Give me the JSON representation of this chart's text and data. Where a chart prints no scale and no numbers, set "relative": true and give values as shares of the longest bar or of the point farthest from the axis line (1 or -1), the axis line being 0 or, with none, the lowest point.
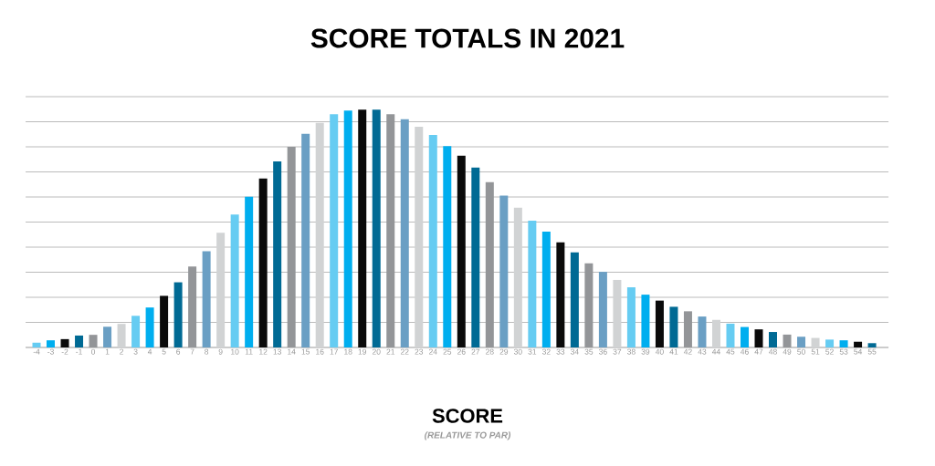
{
  "chart_data": {
    "type": "bar",
    "title": "SCORE TOTALS IN 2021",
    "xlabel": "SCORE",
    "annotations": [
      "(RELATIVE TO PAR)"
    ],
    "relative": true,
    "grid": "y",
    "categories": [
      "-4",
      "-3",
      "-2",
      "-1",
      "0",
      "1",
      "2",
      "3",
      "4",
      "5",
      "6",
      "7",
      "8",
      "9",
      "10",
      "11",
      "12",
      "13",
      "14",
      "15",
      "16",
      "17",
      "18",
      "19",
      "20",
      "21",
      "22",
      "23",
      "24",
      "25",
      "26",
      "27",
      "28",
      "29",
      "30",
      "31",
      "32",
      "33",
      "34",
      "35",
      "36",
      "37",
      "38",
      "39",
      "40",
      "41",
      "42",
      "43",
      "44",
      "45",
      "46",
      "47",
      "48",
      "49",
      "50",
      "51",
      "52",
      "53",
      "54",
      "55"
    ],
    "values": [
      0.02,
      0.03,
      0.035,
      0.05,
      0.053,
      0.087,
      0.099,
      0.133,
      0.168,
      0.217,
      0.274,
      0.34,
      0.405,
      0.482,
      0.559,
      0.634,
      0.711,
      0.783,
      0.844,
      0.899,
      0.945,
      0.981,
      0.996,
      1,
      1,
      0.981,
      0.96,
      0.928,
      0.894,
      0.847,
      0.807,
      0.757,
      0.695,
      0.639,
      0.588,
      0.533,
      0.487,
      0.442,
      0.4,
      0.354,
      0.318,
      0.284,
      0.253,
      0.222,
      0.197,
      0.171,
      0.152,
      0.13,
      0.116,
      0.1,
      0.086,
      0.076,
      0.065,
      0.054,
      0.045,
      0.04,
      0.033,
      0.03,
      0.024,
      0.018
    ],
    "colors": [
      "#66ccf2",
      "#00aeef",
      "#0a0a0a",
      "#006a94",
      "#939598",
      "#6a9fc4",
      "#d1d3d4",
      "#66ccf2",
      "#00aeef",
      "#0a0a0a",
      "#006a94",
      "#939598",
      "#6a9fc4",
      "#d1d3d4",
      "#66ccf2",
      "#00aeef",
      "#0a0a0a",
      "#006a94",
      "#939598",
      "#6a9fc4",
      "#d1d3d4",
      "#66ccf2",
      "#00aeef",
      "#0a0a0a",
      "#006a94",
      "#939598",
      "#6a9fc4",
      "#d1d3d4",
      "#66ccf2",
      "#00aeef",
      "#0a0a0a",
      "#006a94",
      "#939598",
      "#6a9fc4",
      "#d1d3d4",
      "#66ccf2",
      "#00aeef",
      "#0a0a0a",
      "#006a94",
      "#939598",
      "#6a9fc4",
      "#d1d3d4",
      "#66ccf2",
      "#00aeef",
      "#0a0a0a",
      "#006a94",
      "#939598",
      "#6a9fc4",
      "#d1d3d4",
      "#66ccf2",
      "#00aeef",
      "#0a0a0a",
      "#006a94",
      "#939598",
      "#6a9fc4",
      "#d1d3d4",
      "#66ccf2",
      "#00aeef",
      "#0a0a0a",
      "#006a94"
    ]
  }
}
